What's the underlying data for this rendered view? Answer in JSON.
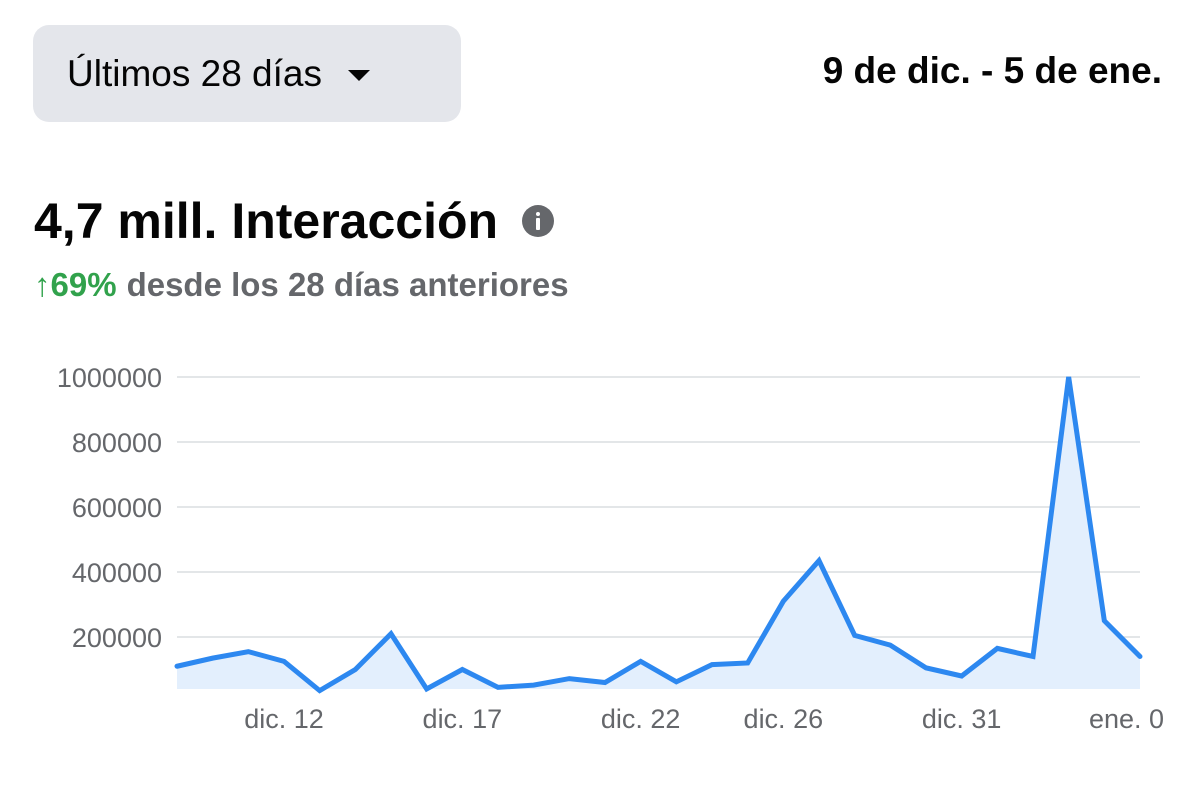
{
  "range_selector": {
    "label": "Últimos 28 días",
    "icon": "caret-down-icon"
  },
  "date_range": "9 de dic. - 5 de ene.",
  "metric": {
    "title": "4,7 mill. Interacción",
    "info_icon": "info-icon",
    "change_arrow": "↑",
    "change_value": "69%",
    "change_text": "desde los 28 días anteriores",
    "change_color": "#31a24c"
  },
  "chart_data": {
    "type": "area",
    "x": [
      "dic. 9",
      "dic. 10",
      "dic. 11",
      "dic. 12",
      "dic. 13",
      "dic. 14",
      "dic. 15",
      "dic. 16",
      "dic. 17",
      "dic. 18",
      "dic. 19",
      "dic. 20",
      "dic. 21",
      "dic. 22",
      "dic. 23",
      "dic. 24",
      "dic. 25",
      "dic. 26",
      "dic. 27",
      "dic. 28",
      "dic. 29",
      "dic. 30",
      "dic. 31",
      "ene. 1",
      "ene. 2",
      "ene. 3",
      "ene. 4",
      "ene. 5"
    ],
    "values": [
      110000,
      135000,
      155000,
      125000,
      35000,
      100000,
      210000,
      40000,
      100000,
      45000,
      52000,
      72000,
      60000,
      125000,
      62000,
      115000,
      120000,
      310000,
      435000,
      205000,
      175000,
      105000,
      80000,
      165000,
      140000,
      1000000,
      250000,
      140000
    ],
    "xticks": [
      "dic. 12",
      "dic. 17",
      "dic. 22",
      "dic. 26",
      "dic. 31",
      "ene. 0"
    ],
    "yticks": [
      "1000000",
      "800000",
      "600000",
      "400000",
      "200000"
    ],
    "ylim": [
      40000,
      1000000
    ],
    "line_color": "#2d88f0",
    "fill_color": "#e3effd",
    "grid": true
  }
}
